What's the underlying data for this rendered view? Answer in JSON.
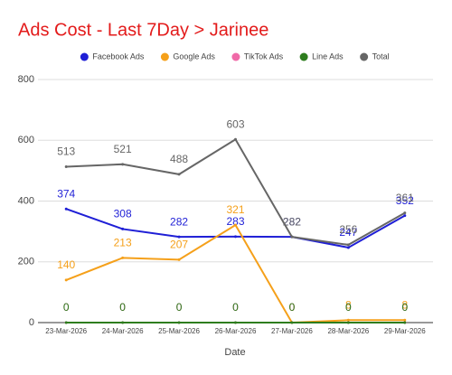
{
  "chart_data": {
    "type": "line",
    "title": "Ads Cost - Last 7Day > Jarinee",
    "x_label": "Date",
    "categories": [
      "23-Mar-2026",
      "24-Mar-2026",
      "25-Mar-2026",
      "26-Mar-2026",
      "27-Mar-2026",
      "28-Mar-2026",
      "29-Mar-2026"
    ],
    "series": [
      {
        "name": "Facebook Ads",
        "color": "#1f1fd6",
        "values": [
          374,
          308,
          282,
          283,
          282,
          247,
          352
        ]
      },
      {
        "name": "Google Ads",
        "color": "#f5a01a",
        "values": [
          140,
          213,
          207,
          321,
          0,
          8,
          8
        ]
      },
      {
        "name": "TikTok Ads",
        "color": "#f06aa8",
        "values": [
          0,
          0,
          0,
          0,
          0,
          0,
          0
        ]
      },
      {
        "name": "Line Ads",
        "color": "#2e7d1e",
        "values": [
          0,
          0,
          0,
          0,
          0,
          0,
          0
        ]
      },
      {
        "name": "Total",
        "color": "#666666",
        "values": [
          513,
          521,
          488,
          603,
          282,
          256,
          361
        ]
      }
    ],
    "ylim": [
      0,
      800
    ],
    "yticks": [
      0,
      200,
      400,
      600,
      800
    ],
    "grid": true,
    "legend": "top"
  }
}
